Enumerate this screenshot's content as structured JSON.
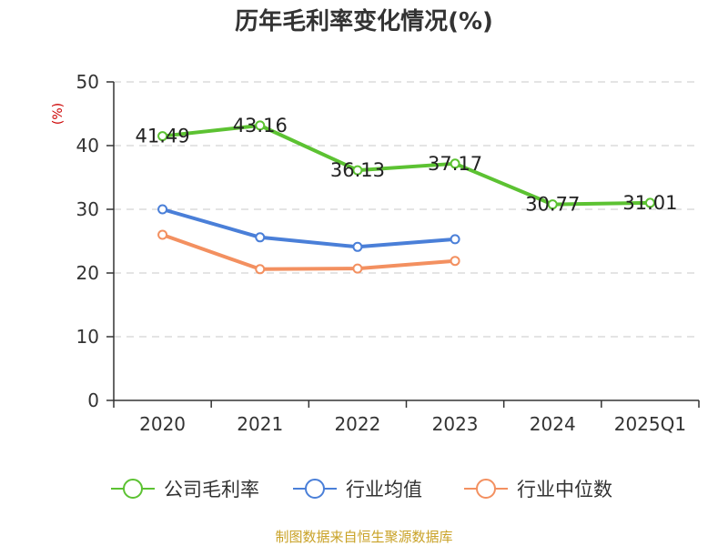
{
  "chart_data": {
    "type": "line",
    "title": "历年毛利率变化情况(%)",
    "ylabel": "(%)",
    "xlabel": "",
    "categories": [
      "2020",
      "2021",
      "2022",
      "2023",
      "2024",
      "2025Q1"
    ],
    "ylim": [
      0,
      50
    ],
    "yticks": [
      "0",
      "10",
      "20",
      "30",
      "40",
      "50"
    ],
    "grid": true,
    "legend_position": "bottom",
    "series": [
      {
        "name": "公司毛利率",
        "color": "#5cc232",
        "values": [
          41.49,
          43.16,
          36.13,
          37.17,
          30.77,
          31.01
        ],
        "labels": [
          "41.49",
          "43.16",
          "36.13",
          "37.17",
          "30.77",
          "31.01"
        ],
        "show_labels": true
      },
      {
        "name": "行业均值",
        "color": "#4a7fd8",
        "values": [
          30.0,
          25.6,
          24.1,
          25.3,
          null,
          null
        ],
        "show_labels": false
      },
      {
        "name": "行业中位数",
        "color": "#f39060",
        "values": [
          26.0,
          20.6,
          20.7,
          21.9,
          null,
          null
        ],
        "show_labels": false
      }
    ]
  },
  "footer": {
    "source": "制图数据来自恒生聚源数据库"
  }
}
